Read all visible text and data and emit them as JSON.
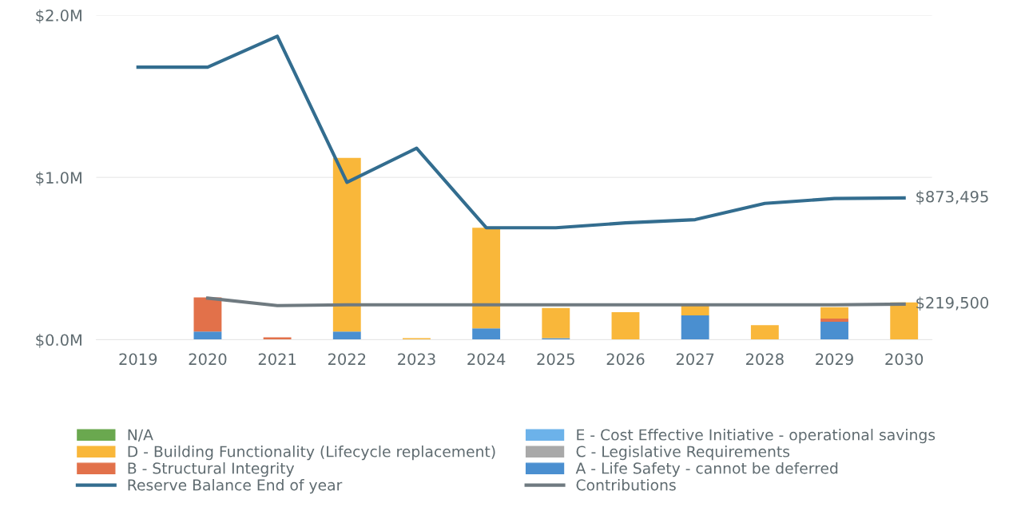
{
  "chart_data": {
    "type": "bar",
    "stacked": true,
    "categories": [
      "2019",
      "2020",
      "2021",
      "2022",
      "2023",
      "2024",
      "2025",
      "2026",
      "2027",
      "2028",
      "2029",
      "2030"
    ],
    "ylim": [
      0,
      2000000
    ],
    "yticks": [
      {
        "value": 0,
        "label": "$0.0M"
      },
      {
        "value": 1000000,
        "label": "$1.0M"
      },
      {
        "value": 2000000,
        "label": "$2.0M"
      }
    ],
    "grid": "y",
    "legend": "bottom",
    "series": [
      {
        "name": "A - Life Safety - cannot be deferred",
        "color": "#4a8fd0",
        "values": [
          null,
          50000,
          null,
          50000,
          null,
          70000,
          10000,
          null,
          150000,
          null,
          110000,
          null
        ]
      },
      {
        "name": "B - Structural Integrity",
        "color": "#e2714a",
        "values": [
          null,
          210000,
          15000,
          null,
          null,
          null,
          null,
          null,
          null,
          null,
          20000,
          null
        ]
      },
      {
        "name": "C - Legislative Requirements",
        "color": "#a9a9a9",
        "values": [
          null,
          null,
          null,
          null,
          null,
          null,
          null,
          null,
          null,
          null,
          null,
          null
        ]
      },
      {
        "name": "D - Building Functionality (Lifecycle replacement)",
        "color": "#f9b73a",
        "values": [
          null,
          null,
          null,
          1070000,
          10000,
          620000,
          185000,
          170000,
          60000,
          90000,
          70000,
          230000
        ]
      },
      {
        "name": "E - Cost Effective Initiative - operational savings",
        "color": "#6cb2ea",
        "values": [
          null,
          null,
          null,
          null,
          null,
          null,
          null,
          null,
          null,
          null,
          null,
          null
        ]
      },
      {
        "name": "N/A",
        "color": "#6aa84f",
        "values": [
          null,
          null,
          null,
          null,
          null,
          null,
          null,
          null,
          null,
          null,
          null,
          null
        ]
      },
      {
        "name": "Reserve Balance End of year",
        "type": "line",
        "color": "#336d8f",
        "values": [
          1680000,
          1680000,
          1870000,
          970000,
          1180000,
          690000,
          690000,
          720000,
          740000,
          840000,
          870000,
          873495
        ],
        "value_labels": [
          null,
          null,
          null,
          null,
          null,
          null,
          null,
          null,
          null,
          null,
          null,
          "$873,495"
        ]
      },
      {
        "name": "Contributions",
        "type": "line",
        "color": "#6f7a80",
        "values": [
          null,
          256000,
          210000,
          215000,
          215000,
          215000,
          215000,
          215000,
          215000,
          215000,
          215000,
          219500
        ],
        "value_labels": [
          null,
          null,
          null,
          null,
          null,
          null,
          null,
          null,
          null,
          null,
          null,
          "$219,500"
        ]
      }
    ]
  }
}
